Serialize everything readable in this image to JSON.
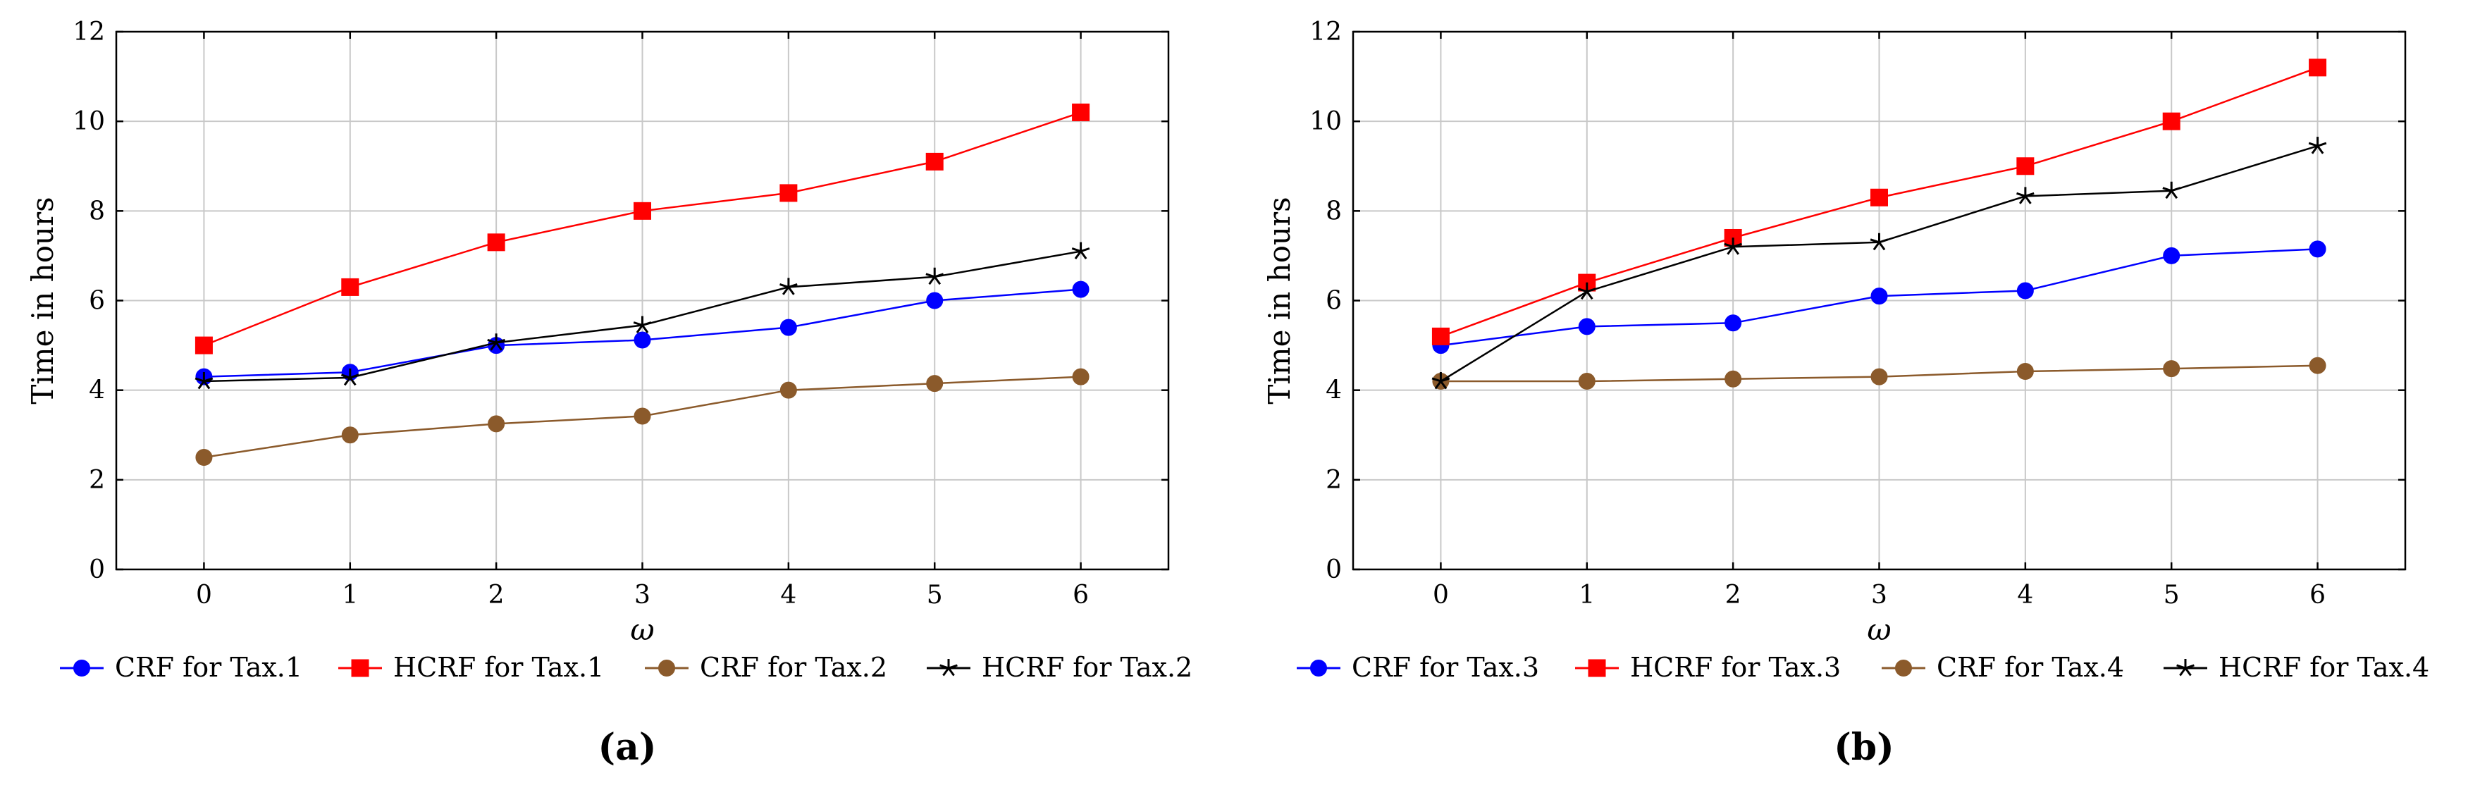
{
  "chart_data": [
    {
      "type": "line",
      "panel_label": "(a)",
      "xlabel": "ω",
      "ylabel": "Time in hours",
      "xlim": [
        -0.6,
        6.6
      ],
      "ylim": [
        0,
        12
      ],
      "xticks": [
        "0",
        "1",
        "2",
        "3",
        "4",
        "5",
        "6"
      ],
      "yticks": [
        "0",
        "2",
        "4",
        "6",
        "8",
        "10",
        "12"
      ],
      "grid": true,
      "legend_position": "bottom",
      "x": [
        0,
        1,
        2,
        3,
        4,
        5,
        6
      ],
      "series": [
        {
          "name": "CRF for Tax.1",
          "color": "#0000ff",
          "marker": "circle",
          "values": [
            4.3,
            4.4,
            5.0,
            5.12,
            5.4,
            6.0,
            6.25
          ]
        },
        {
          "name": "HCRF for Tax.1",
          "color": "#ff0000",
          "marker": "square",
          "values": [
            5.0,
            6.3,
            7.3,
            8.0,
            8.4,
            9.1,
            10.2
          ]
        },
        {
          "name": "CRF for Tax.2",
          "color": "#8b5a2b",
          "marker": "circle",
          "values": [
            2.5,
            3.0,
            3.25,
            3.42,
            4.0,
            4.15,
            4.3
          ]
        },
        {
          "name": "HCRF for Tax.2",
          "color": "#000000",
          "marker": "star",
          "values": [
            4.2,
            4.28,
            5.06,
            5.45,
            6.3,
            6.53,
            7.1
          ]
        }
      ]
    },
    {
      "type": "line",
      "panel_label": "(b)",
      "xlabel": "ω",
      "ylabel": "Time in hours",
      "xlim": [
        -0.6,
        6.6
      ],
      "ylim": [
        0,
        12
      ],
      "xticks": [
        "0",
        "1",
        "2",
        "3",
        "4",
        "5",
        "6"
      ],
      "yticks": [
        "0",
        "2",
        "4",
        "6",
        "8",
        "10",
        "12"
      ],
      "grid": true,
      "legend_position": "bottom",
      "x": [
        0,
        1,
        2,
        3,
        4,
        5,
        6
      ],
      "series": [
        {
          "name": "CRF for Tax.3",
          "color": "#0000ff",
          "marker": "circle",
          "values": [
            5.0,
            5.42,
            5.5,
            6.1,
            6.22,
            7.0,
            7.15
          ]
        },
        {
          "name": "HCRF for Tax.3",
          "color": "#ff0000",
          "marker": "square",
          "values": [
            5.2,
            6.4,
            7.4,
            8.3,
            9.0,
            10.0,
            11.2
          ]
        },
        {
          "name": "CRF for Tax.4",
          "color": "#8b5a2b",
          "marker": "circle",
          "values": [
            4.2,
            4.2,
            4.25,
            4.3,
            4.42,
            4.48,
            4.55
          ]
        },
        {
          "name": "HCRF for Tax.4",
          "color": "#000000",
          "marker": "star",
          "values": [
            4.2,
            6.2,
            7.2,
            7.3,
            8.33,
            8.45,
            9.45
          ]
        }
      ]
    }
  ]
}
